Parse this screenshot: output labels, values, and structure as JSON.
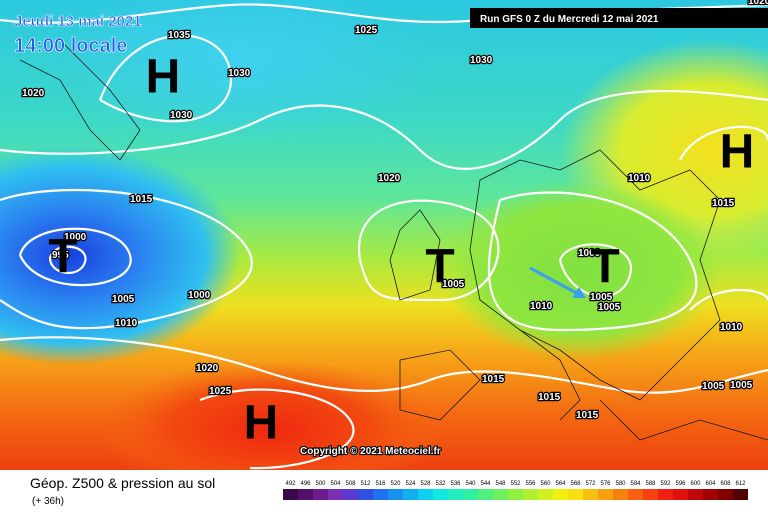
{
  "header": {
    "date": "Jeudi 13 mai 2021",
    "time": "14:00 locale",
    "run": "Run GFS 0 Z du Mercredi 12 mai 2021"
  },
  "map": {
    "centers": [
      "H",
      "H",
      "T",
      "T",
      "T",
      "H"
    ],
    "isobar_labels": [
      "1035",
      "1025",
      "1030",
      "1030",
      "1020",
      "1030",
      "1020",
      "1015",
      "1010",
      "1015",
      "1000",
      "995",
      "1005",
      "1000",
      "1005",
      "1000",
      "1010",
      "1010",
      "1005",
      "1005",
      "1010",
      "1020",
      "1025",
      "1015",
      "1015",
      "1005",
      "1005",
      "1015",
      "1020"
    ],
    "copyright": "Copyright © 2021 Meteociel.fr"
  },
  "footer": {
    "title": "Géop. Z500 & pression au sol",
    "lead": "(+ 36h)"
  },
  "legend": {
    "labels": [
      492,
      496,
      500,
      504,
      508,
      512,
      516,
      520,
      524,
      528,
      532,
      536,
      540,
      544,
      548,
      552,
      556,
      560,
      564,
      568,
      572,
      576,
      580,
      584,
      588,
      592,
      596,
      600,
      604,
      608,
      612
    ],
    "colors": [
      "#3a0a4a",
      "#52106a",
      "#6a1c8c",
      "#7a30b0",
      "#5a3ad0",
      "#3050e0",
      "#2070f0",
      "#1890f0",
      "#10b0f0",
      "#10d0f0",
      "#10e8e0",
      "#20f0c0",
      "#30f0a0",
      "#50f080",
      "#70f060",
      "#90f040",
      "#b0f030",
      "#d0f020",
      "#f0f010",
      "#f8e010",
      "#f8c010",
      "#f8a010",
      "#f88010",
      "#f86010",
      "#f84010",
      "#f02010",
      "#e01010",
      "#c00808",
      "#a00404",
      "#800000",
      "#500000"
    ]
  }
}
